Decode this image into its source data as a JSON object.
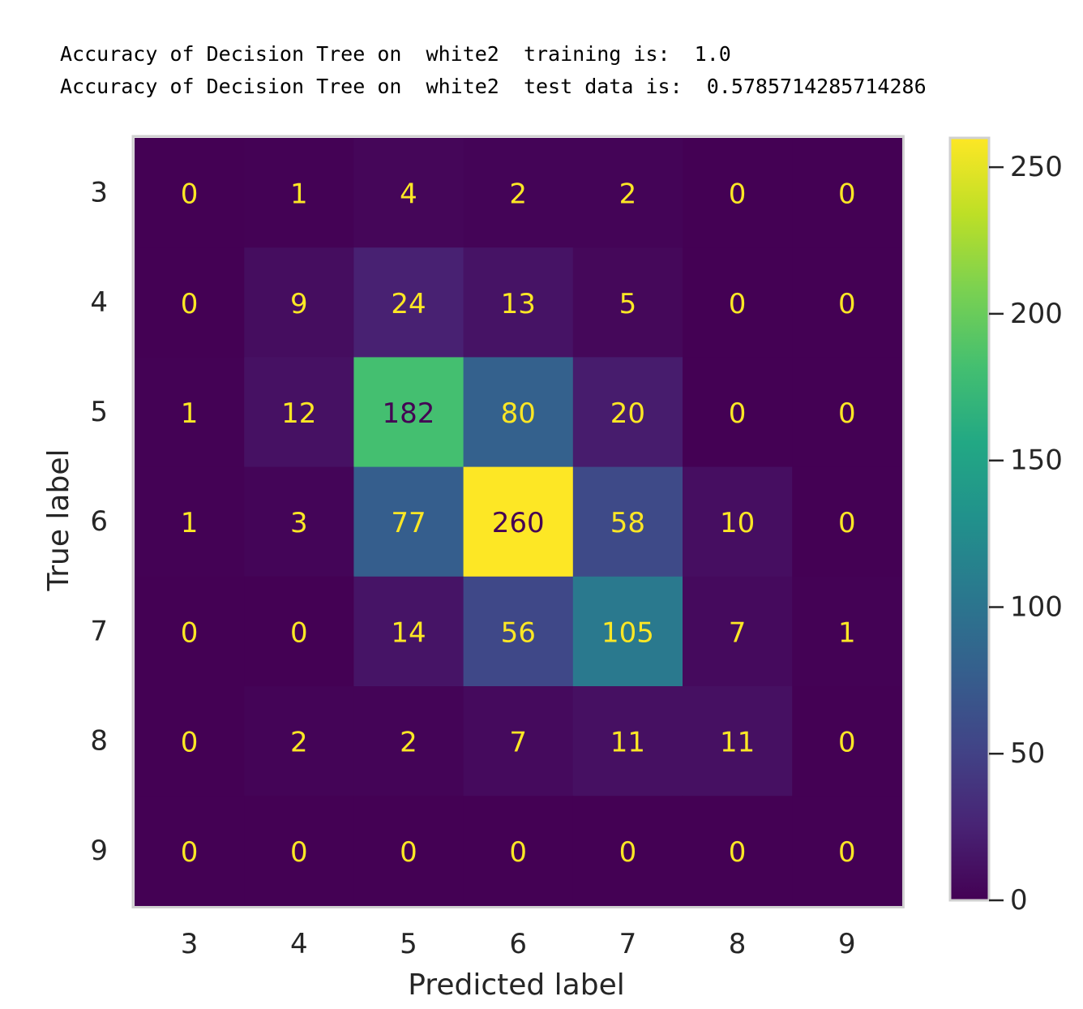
{
  "output_lines": [
    "Accuracy of Decision Tree on  white2  training is:  1.0",
    "Accuracy of Decision Tree on  white2  test data is:  0.5785714285714286"
  ],
  "chart_data": {
    "type": "heatmap",
    "title": "",
    "xlabel": "Predicted label",
    "ylabel": "True label",
    "x_categories": [
      "3",
      "4",
      "5",
      "6",
      "7",
      "8",
      "9"
    ],
    "y_categories": [
      "3",
      "4",
      "5",
      "6",
      "7",
      "8",
      "9"
    ],
    "values": [
      [
        0,
        1,
        4,
        2,
        2,
        0,
        0
      ],
      [
        0,
        9,
        24,
        13,
        5,
        0,
        0
      ],
      [
        1,
        12,
        182,
        80,
        20,
        0,
        0
      ],
      [
        1,
        3,
        77,
        260,
        58,
        10,
        0
      ],
      [
        0,
        0,
        14,
        56,
        105,
        7,
        1
      ],
      [
        0,
        2,
        2,
        7,
        11,
        11,
        0
      ],
      [
        0,
        0,
        0,
        0,
        0,
        0,
        0
      ]
    ],
    "colormap": "viridis",
    "value_range": [
      0,
      260
    ],
    "colorbar_ticks": [
      0,
      50,
      100,
      150,
      200,
      250
    ],
    "grid": false,
    "colors": {
      "low": "#440154",
      "high": "#fde725",
      "text_on_dark": "#fde725",
      "text_on_light": "#440154"
    }
  }
}
